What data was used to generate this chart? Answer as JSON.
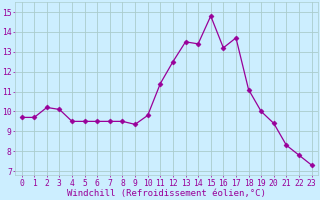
{
  "x": [
    0,
    1,
    2,
    3,
    4,
    5,
    6,
    7,
    8,
    9,
    10,
    11,
    12,
    13,
    14,
    15,
    16,
    17,
    18,
    19,
    20,
    21,
    22,
    23
  ],
  "y": [
    9.7,
    9.7,
    10.2,
    10.1,
    9.5,
    9.5,
    9.5,
    9.5,
    9.5,
    9.35,
    9.8,
    11.4,
    12.5,
    13.5,
    13.4,
    14.8,
    13.2,
    13.7,
    11.1,
    10.0,
    9.4,
    8.3,
    7.8,
    7.3
  ],
  "line_color": "#990099",
  "marker": "D",
  "bg_color": "#cceeff",
  "grid_color": "#aacccc",
  "xlabel": "Windchill (Refroidissement éolien,°C)",
  "yticks": [
    7,
    8,
    9,
    10,
    11,
    12,
    13,
    14,
    15
  ],
  "xlim": [
    -0.5,
    23.5
  ],
  "ylim": [
    6.8,
    15.5
  ],
  "tick_color": "#990099",
  "xlabel_fontsize": 6.5,
  "tick_fontsize": 5.8,
  "linewidth": 0.9,
  "markersize": 2.5
}
